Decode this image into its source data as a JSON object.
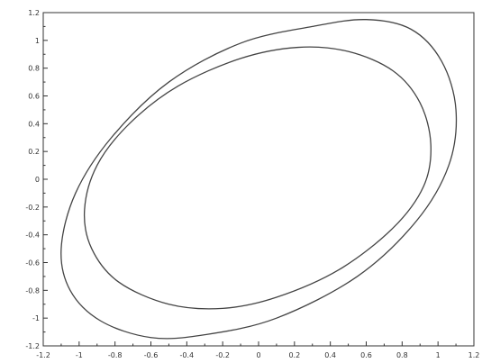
{
  "chart_data": {
    "type": "line",
    "title": "",
    "xlabel": "",
    "ylabel": "",
    "xlim": [
      -1.2,
      1.2
    ],
    "ylim": [
      -1.2,
      1.2
    ],
    "grid": false,
    "legend": "none",
    "x_ticks": [
      -1.2,
      -1,
      -0.8,
      -0.6,
      -0.4,
      -0.2,
      0,
      0.2,
      0.4,
      0.6,
      0.8,
      1,
      1.2
    ],
    "x_tick_labels": [
      "-1.2",
      "-1",
      "-0.8",
      "-0.6",
      "-0.4",
      "-0.2",
      "0",
      "0.2",
      "0.4",
      "0.6",
      "0.8",
      "1",
      "1.2"
    ],
    "y_ticks": [
      -1.2,
      -1,
      -0.8,
      -0.6,
      -0.4,
      -0.2,
      0,
      0.2,
      0.4,
      0.6,
      0.8,
      1,
      1.2
    ],
    "y_tick_labels": [
      "-1.2",
      "-1",
      "-0.8",
      "-0.6",
      "-0.4",
      "-0.2",
      "0",
      "0.2",
      "0.4",
      "0.6",
      "0.8",
      "1",
      "1.2"
    ],
    "series": [
      {
        "color": "#444444",
        "values": [
          [
            -1.1,
            -0.5
          ],
          [
            -1.02,
            -0.1
          ],
          [
            -0.82,
            0.3
          ],
          [
            -0.5,
            0.7
          ],
          [
            -0.1,
            0.98
          ],
          [
            0.3,
            1.1
          ],
          [
            0.6,
            1.15
          ],
          [
            0.85,
            1.08
          ],
          [
            1.02,
            0.85
          ],
          [
            1.1,
            0.5
          ],
          [
            1.06,
            0.1
          ],
          [
            0.88,
            -0.3
          ],
          [
            0.55,
            -0.7
          ],
          [
            0.1,
            -1.0
          ],
          [
            -0.3,
            -1.12
          ],
          [
            -0.6,
            -1.14
          ],
          [
            -0.88,
            -1.02
          ],
          [
            -1.05,
            -0.8
          ],
          [
            -1.1,
            -0.5
          ]
        ]
      },
      {
        "color": "#444444",
        "values": [
          [
            -0.97,
            -0.22
          ],
          [
            -0.9,
            0.1
          ],
          [
            -0.72,
            0.4
          ],
          [
            -0.45,
            0.67
          ],
          [
            -0.1,
            0.87
          ],
          [
            0.22,
            0.95
          ],
          [
            0.5,
            0.92
          ],
          [
            0.75,
            0.78
          ],
          [
            0.9,
            0.55
          ],
          [
            0.96,
            0.25
          ],
          [
            0.92,
            -0.05
          ],
          [
            0.75,
            -0.35
          ],
          [
            0.45,
            -0.65
          ],
          [
            0.1,
            -0.85
          ],
          [
            -0.2,
            -0.93
          ],
          [
            -0.5,
            -0.9
          ],
          [
            -0.78,
            -0.74
          ],
          [
            -0.93,
            -0.5
          ],
          [
            -0.97,
            -0.22
          ]
        ]
      }
    ]
  }
}
